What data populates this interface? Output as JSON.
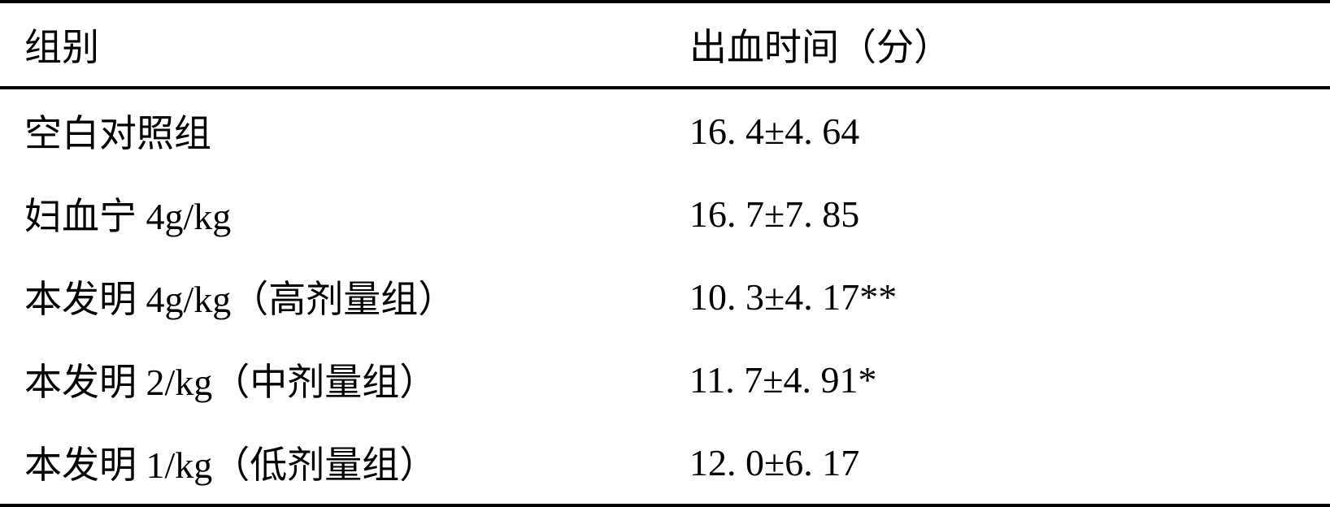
{
  "table": {
    "columns": [
      "组别",
      "出血时间（分）"
    ],
    "rows": [
      [
        "空白对照组",
        "16. 4±4. 64"
      ],
      [
        "妇血宁 4g/kg",
        "16. 7±7. 85"
      ],
      [
        "本发明 4g/kg（高剂量组）",
        "10. 3±4. 17**"
      ],
      [
        "本发明 2/kg（中剂量组）",
        "11. 7±4. 91*"
      ],
      [
        "本发明 1/kg（低剂量组）",
        "12. 0±6. 17"
      ]
    ],
    "border_color": "#000000",
    "background_color": "#ffffff",
    "text_color": "#000000",
    "font_size": 46,
    "font_family": "SimSun",
    "column_widths": [
      0.5,
      0.5
    ],
    "border_width": 4
  }
}
